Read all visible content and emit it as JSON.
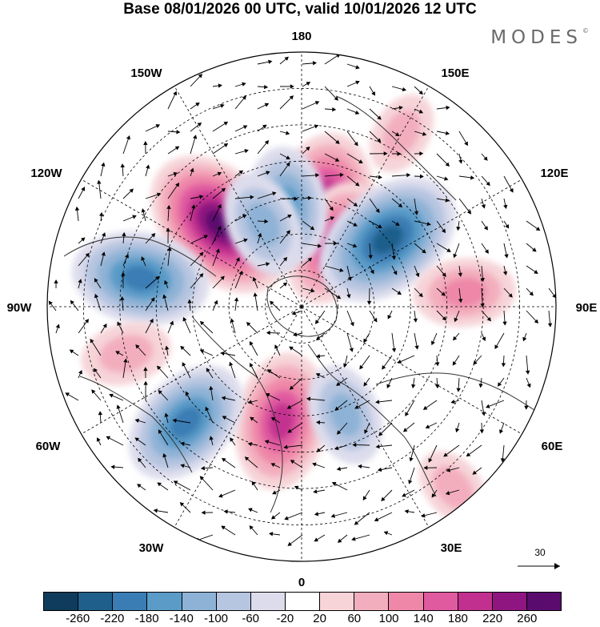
{
  "title": "Base 08/01/2026 00 UTC, valid 10/01/2026 12 UTC",
  "logo": "MODES",
  "logo_mark": "©",
  "longitude_labels": {
    "top": "180",
    "bottom": "0",
    "left": "90W",
    "right": "90E",
    "upper_left_1": "150W",
    "upper_left_2": "120W",
    "lower_left_1": "60W",
    "lower_left_2": "30W",
    "upper_right_1": "150E",
    "upper_right_2": "120E",
    "lower_right_1": "60E",
    "lower_right_2": "30E"
  },
  "vector_scale_label": "30",
  "colorbar": {
    "tick_labels": [
      "-260",
      "-220",
      "-180",
      "-140",
      "-100",
      "-60",
      "-20",
      "20",
      "60",
      "100",
      "140",
      "180",
      "220",
      "260"
    ],
    "colors": [
      "#0f3b5c",
      "#1f5f8b",
      "#3a7db4",
      "#5a9bc8",
      "#8eb2d6",
      "#b6c5e0",
      "#dcdcec",
      "#ffffff",
      "#f6d4d8",
      "#f3aebd",
      "#ee87a8",
      "#e05aa0",
      "#c2308f",
      "#8f1680",
      "#5a0c6e"
    ]
  },
  "anomaly_centers": [
    {
      "lon_deg": -135,
      "lat_deg": 58,
      "value": 260
    },
    {
      "lon_deg": 168,
      "lat_deg": 62,
      "value": 230
    },
    {
      "lon_deg": 152,
      "lat_deg": 70,
      "value": 180
    },
    {
      "lon_deg": -10,
      "lat_deg": 58,
      "value": 200
    },
    {
      "lon_deg": 128,
      "lat_deg": 60,
      "value": -240
    },
    {
      "lon_deg": -172,
      "lat_deg": 62,
      "value": -150
    },
    {
      "lon_deg": -155,
      "lat_deg": 65,
      "value": -120
    },
    {
      "lon_deg": -100,
      "lat_deg": 45,
      "value": -200
    },
    {
      "lon_deg": -45,
      "lat_deg": 45,
      "value": -190
    },
    {
      "lon_deg": 22,
      "lat_deg": 58,
      "value": -110
    },
    {
      "lon_deg": 95,
      "lat_deg": 45,
      "value": 110
    },
    {
      "lon_deg": -75,
      "lat_deg": 40,
      "value": 80
    },
    {
      "lon_deg": 150,
      "lat_deg": 35,
      "value": 60
    },
    {
      "lon_deg": 40,
      "lat_deg": 25,
      "value": 60
    }
  ]
}
